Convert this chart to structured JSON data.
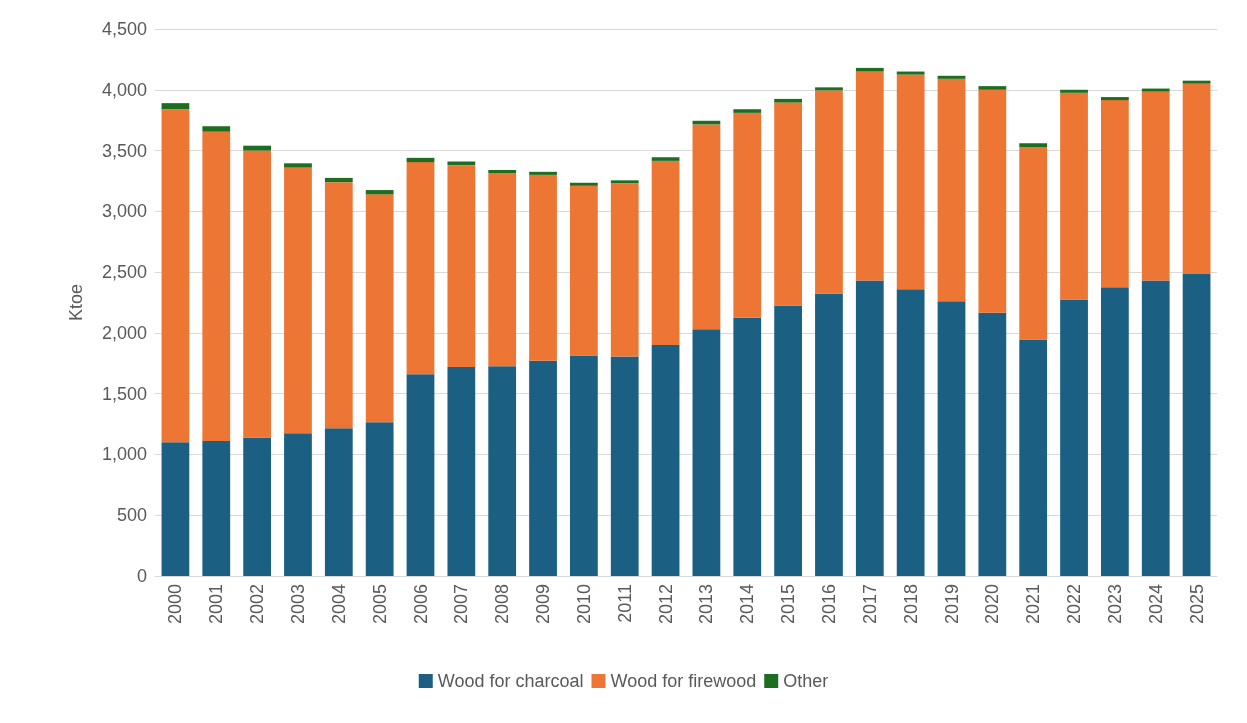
{
  "chart_data": {
    "type": "bar",
    "ylabel": "Ktoe",
    "stacked": true,
    "grid": "y",
    "legend": "bottom",
    "categories": [
      "2000",
      "2001",
      "2002",
      "2003",
      "2004",
      "2005",
      "2006",
      "2007",
      "2008",
      "2009",
      "2010",
      "2011",
      "2012",
      "2013",
      "2014",
      "2015",
      "2016",
      "2017",
      "2018",
      "2019",
      "2020",
      "2021",
      "2022",
      "2023",
      "2024",
      "2025"
    ],
    "series": [
      {
        "name": "Wood for charcoal",
        "color": "#1b6083",
        "values": [
          1100,
          1110,
          1140,
          1175,
          1215,
          1265,
          1660,
          1720,
          1725,
          1770,
          1815,
          1805,
          1900,
          2030,
          2125,
          2225,
          2325,
          2430,
          2360,
          2260,
          2165,
          1945,
          2275,
          2375,
          2430,
          2485
        ]
      },
      {
        "name": "Wood for firewood",
        "color": "#ed7634",
        "values": [
          2740,
          2545,
          2360,
          2185,
          2025,
          1875,
          1745,
          1660,
          1590,
          1530,
          1395,
          1425,
          1515,
          1685,
          1685,
          1670,
          1670,
          1720,
          1765,
          1830,
          1835,
          1585,
          1700,
          1540,
          1555,
          1565
        ]
      },
      {
        "name": "Other",
        "color": "#1e6e21",
        "values": [
          50,
          45,
          40,
          35,
          35,
          35,
          35,
          30,
          25,
          25,
          25,
          25,
          30,
          30,
          30,
          30,
          25,
          30,
          25,
          25,
          30,
          30,
          25,
          25,
          25,
          25
        ]
      }
    ],
    "ylim": [
      0,
      4500
    ],
    "yticks": [
      0,
      500,
      {
        "value": 1000,
        "label": "1,000"
      },
      {
        "value": 1500,
        "label": "1,500"
      },
      {
        "value": 2000,
        "label": "2,000"
      },
      {
        "value": 2500,
        "label": "2,500"
      },
      {
        "value": 3000,
        "label": "3,000"
      },
      {
        "value": 3500,
        "label": "3,500"
      },
      {
        "value": 4000,
        "label": "4,000"
      },
      {
        "value": 4500,
        "label": "4,500"
      }
    ]
  }
}
